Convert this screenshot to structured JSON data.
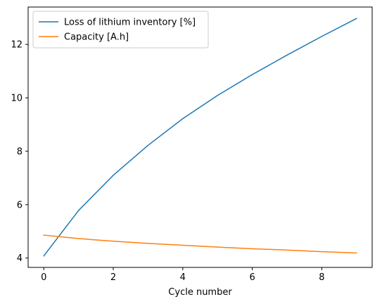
{
  "chart_data": {
    "type": "line",
    "title": "",
    "xlabel": "Cycle number",
    "ylabel": "",
    "xlim": [
      -0.45,
      9.45
    ],
    "ylim": [
      3.65,
      13.4
    ],
    "xticks": [
      0,
      2,
      4,
      6,
      8
    ],
    "yticks": [
      4,
      6,
      8,
      10,
      12
    ],
    "grid": false,
    "legend_position": "upper-left",
    "series": [
      {
        "name": "Loss of lithium inventory [%]",
        "color": "#1f77b4",
        "x": [
          0,
          1,
          2,
          3,
          4,
          5,
          6,
          7,
          8,
          9
        ],
        "y": [
          4.08,
          5.78,
          7.1,
          8.22,
          9.22,
          10.09,
          10.87,
          11.6,
          12.3,
          12.97
        ]
      },
      {
        "name": "Capacity [A.h]",
        "color": "#ff7f0e",
        "x": [
          0,
          1,
          2,
          3,
          4,
          5,
          6,
          7,
          8,
          9
        ],
        "y": [
          4.86,
          4.73,
          4.63,
          4.55,
          4.48,
          4.41,
          4.35,
          4.3,
          4.24,
          4.19
        ]
      }
    ]
  }
}
